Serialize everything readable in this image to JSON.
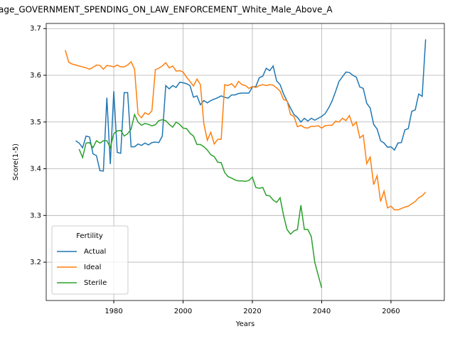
{
  "chart_data": {
    "type": "line",
    "title": "age_GOVERNMENT_SPENDING_ON_LAW_ENFORCEMENT_White_Male_Above_A",
    "xlabel": "Years",
    "ylabel": "Score(1-5)",
    "legend_title": "Fertility",
    "legend": "lower left",
    "grid": true,
    "xlim": [
      1960.5,
      2075.4
    ],
    "ylim": [
      3.118,
      3.711
    ],
    "xticks": [
      1980,
      2000,
      2020,
      2040,
      2060
    ],
    "yticks": [
      3.2,
      3.3,
      3.4,
      3.5,
      3.6,
      3.7
    ],
    "x": [
      1966,
      1967,
      1968,
      1969,
      1970,
      1971,
      1972,
      1973,
      1974,
      1975,
      1976,
      1977,
      1978,
      1979,
      1980,
      1981,
      1982,
      1983,
      1984,
      1985,
      1986,
      1987,
      1988,
      1989,
      1990,
      1991,
      1992,
      1993,
      1994,
      1995,
      1996,
      1997,
      1998,
      1999,
      2000,
      2001,
      2002,
      2003,
      2004,
      2005,
      2006,
      2007,
      2008,
      2009,
      2010,
      2011,
      2012,
      2013,
      2014,
      2015,
      2016,
      2017,
      2018,
      2019,
      2020,
      2021,
      2022,
      2023,
      2024,
      2025,
      2026,
      2027,
      2028,
      2029,
      2030,
      2031,
      2032,
      2033,
      2034,
      2035,
      2036,
      2037,
      2038,
      2039,
      2040,
      2041,
      2042,
      2043,
      2044,
      2045,
      2046,
      2047,
      2048,
      2049,
      2050,
      2051,
      2052,
      2053,
      2054,
      2055,
      2056,
      2057,
      2058,
      2059,
      2060,
      2061,
      2062,
      2063,
      2064,
      2065,
      2066,
      2067,
      2068,
      2069,
      2070
    ],
    "series": [
      {
        "name": "Actual",
        "color": "#1f77b4",
        "values": [
          null,
          null,
          null,
          3.46,
          3.455,
          3.445,
          3.47,
          3.468,
          3.432,
          3.428,
          3.396,
          3.395,
          3.552,
          3.41,
          3.566,
          3.435,
          3.433,
          3.563,
          3.563,
          3.447,
          3.447,
          3.453,
          3.45,
          3.455,
          3.451,
          3.456,
          3.457,
          3.456,
          3.47,
          3.578,
          3.571,
          3.578,
          3.574,
          3.585,
          3.584,
          3.582,
          3.578,
          3.553,
          3.556,
          3.537,
          3.546,
          3.541,
          3.546,
          3.549,
          3.552,
          3.556,
          3.553,
          3.551,
          3.558,
          3.558,
          3.561,
          3.562,
          3.562,
          3.562,
          3.575,
          3.576,
          3.595,
          3.598,
          3.615,
          3.61,
          3.62,
          3.588,
          3.58,
          3.56,
          3.545,
          3.53,
          3.516,
          3.51,
          3.5,
          3.508,
          3.502,
          3.508,
          3.504,
          3.508,
          3.512,
          3.518,
          3.53,
          3.545,
          3.565,
          3.587,
          3.597,
          3.607,
          3.606,
          3.6,
          3.596,
          3.575,
          3.572,
          3.54,
          3.53,
          3.495,
          3.485,
          3.46,
          3.455,
          3.446,
          3.447,
          3.44,
          3.455,
          3.456,
          3.483,
          3.486,
          3.523,
          3.526,
          3.56,
          3.555,
          3.677
        ]
      },
      {
        "name": "Ideal",
        "color": "#ff7f0e",
        "values": [
          3.654,
          3.628,
          3.624,
          3.622,
          3.62,
          3.618,
          3.616,
          3.613,
          3.617,
          3.622,
          3.621,
          3.613,
          3.621,
          3.62,
          3.618,
          3.622,
          3.618,
          3.618,
          3.622,
          3.629,
          3.613,
          3.517,
          3.509,
          3.52,
          3.516,
          3.524,
          3.612,
          3.615,
          3.62,
          3.627,
          3.616,
          3.62,
          3.609,
          3.61,
          3.607,
          3.596,
          3.587,
          3.577,
          3.592,
          3.58,
          3.496,
          3.461,
          3.478,
          3.453,
          3.463,
          3.463,
          3.58,
          3.578,
          3.582,
          3.574,
          3.587,
          3.58,
          3.578,
          3.572,
          3.576,
          3.574,
          3.578,
          3.58,
          3.578,
          3.58,
          3.579,
          3.573,
          3.566,
          3.548,
          3.546,
          3.516,
          3.512,
          3.49,
          3.493,
          3.488,
          3.487,
          3.491,
          3.491,
          3.492,
          3.487,
          3.492,
          3.493,
          3.493,
          3.502,
          3.5,
          3.508,
          3.503,
          3.514,
          3.492,
          3.5,
          3.466,
          3.472,
          3.411,
          3.425,
          3.366,
          3.385,
          3.33,
          3.352,
          3.316,
          3.32,
          3.312,
          3.312,
          3.315,
          3.318,
          3.32,
          3.325,
          3.33,
          3.338,
          3.342,
          3.35
        ]
      },
      {
        "name": "Sterile",
        "color": "#2ca02c",
        "values": [
          null,
          null,
          null,
          null,
          3.442,
          3.424,
          3.455,
          3.456,
          3.445,
          3.46,
          3.455,
          3.46,
          3.46,
          3.445,
          3.475,
          3.481,
          3.482,
          3.47,
          3.475,
          3.485,
          3.516,
          3.5,
          3.493,
          3.497,
          3.495,
          3.492,
          3.494,
          3.503,
          3.505,
          3.503,
          3.495,
          3.489,
          3.5,
          3.495,
          3.487,
          3.486,
          3.476,
          3.47,
          3.452,
          3.452,
          3.447,
          3.44,
          3.43,
          3.426,
          3.414,
          3.413,
          3.392,
          3.383,
          3.38,
          3.376,
          3.374,
          3.374,
          3.373,
          3.375,
          3.382,
          3.36,
          3.358,
          3.36,
          3.343,
          3.342,
          3.333,
          3.328,
          3.338,
          3.3,
          3.27,
          3.26,
          3.267,
          3.27,
          3.322,
          3.27,
          3.27,
          3.255,
          3.2,
          3.172,
          3.145,
          null,
          null,
          null,
          null,
          null,
          null,
          null,
          null,
          null,
          null,
          null,
          null,
          null,
          null,
          null,
          null,
          null,
          null,
          null,
          null,
          null,
          null,
          null,
          null,
          null,
          null,
          null,
          null,
          null,
          null
        ]
      }
    ]
  }
}
